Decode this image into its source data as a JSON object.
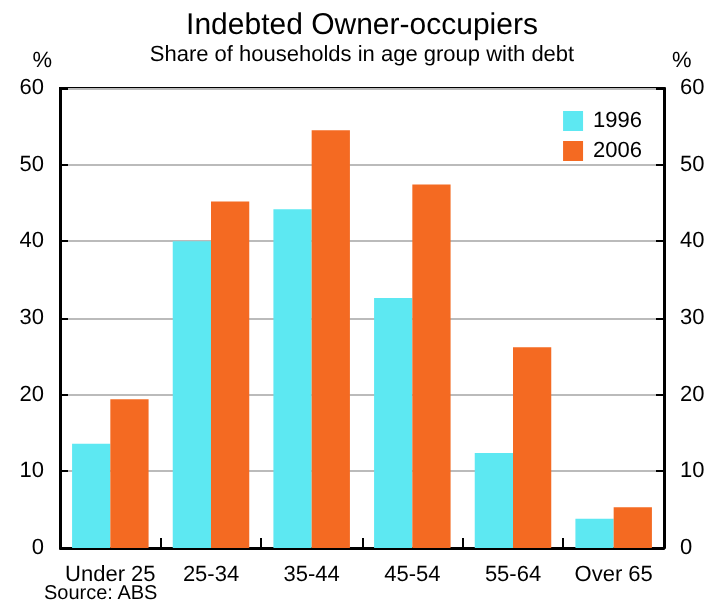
{
  "chart_data": {
    "type": "bar",
    "title": "Indebted Owner-occupiers",
    "subtitle": "Share of households in age group with debt",
    "categories": [
      "Under 25",
      "25-34",
      "35-44",
      "45-54",
      "55-64",
      "Over 65"
    ],
    "series": [
      {
        "name": "1996",
        "color": "#5de8f2",
        "values": [
          13.6,
          40,
          44.2,
          32.6,
          12.4,
          3.8
        ]
      },
      {
        "name": "2006",
        "color": "#f46a22",
        "values": [
          19.4,
          45.2,
          54.5,
          47.4,
          26.2,
          5.3
        ]
      }
    ],
    "ylabel": "%",
    "y2label": "%",
    "ylim": [
      0,
      60
    ],
    "yticks": [
      0,
      10,
      20,
      30,
      40,
      50,
      60
    ],
    "y2lim": [
      0,
      60
    ],
    "y2ticks": [
      0,
      10,
      20,
      30,
      40,
      50,
      60
    ],
    "grid": "y",
    "legend": "top right",
    "annotations": [
      "Source: ABS"
    ]
  }
}
